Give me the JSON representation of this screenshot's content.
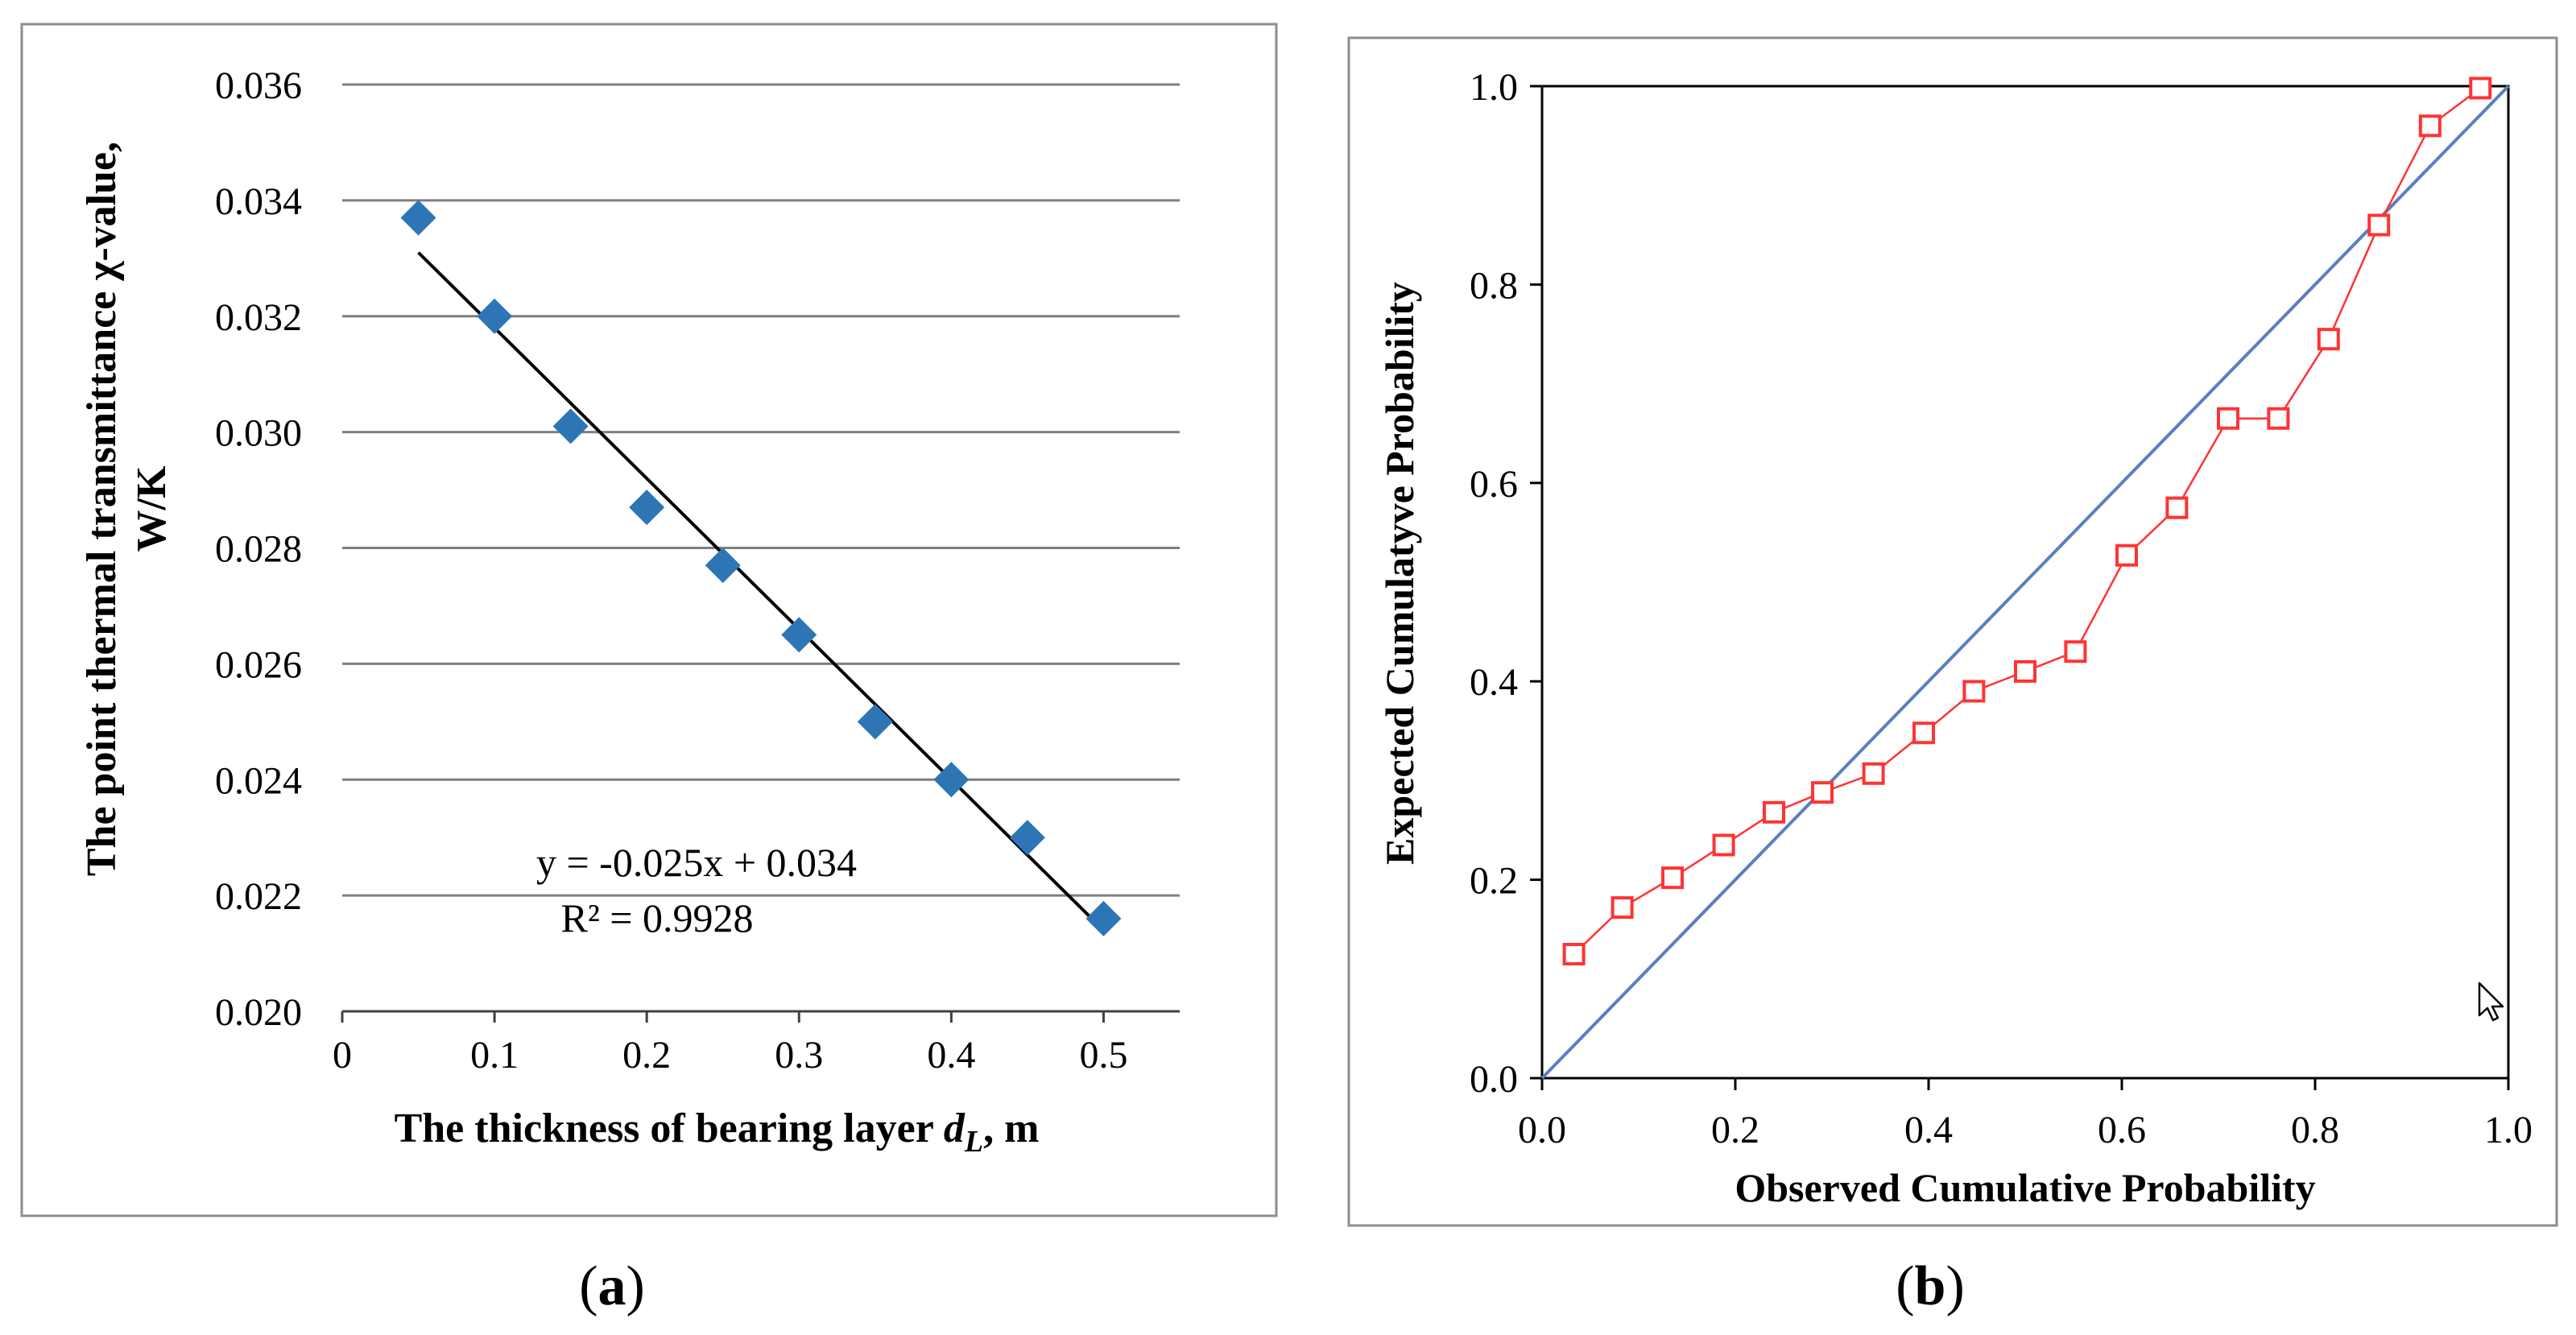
{
  "colors": {
    "scatter_marker": "#2e75b6",
    "trendline": "#000000",
    "pp_series": "#ff3333",
    "pp_reference": "#5b7fc0",
    "gridline": "#7f7f7f",
    "frame": "#8c8c8c"
  },
  "panels": {
    "a": {
      "caption": "(a)",
      "caption_letter": "a"
    },
    "b": {
      "caption": "(b)",
      "caption_letter": "b"
    }
  },
  "cursor": {
    "icon": "mouse-pointer-icon"
  },
  "chart_data": [
    {
      "id": "a",
      "type": "scatter",
      "title": "",
      "xlabel": "The thickness of bearing layer dL, m",
      "xlabel_parts": {
        "prefix": "The thickness of bearing layer ",
        "var": "d",
        "sub": "L",
        "suffix": ", m"
      },
      "ylabel": "The point thermal transmittance χ-value, W/K",
      "ylabel_lines": [
        "The point thermal transmittance χ-value,",
        "W/K"
      ],
      "xlim": [
        0,
        0.55
      ],
      "ylim": [
        0.02,
        0.036
      ],
      "xticks": [
        0,
        0.1,
        0.2,
        0.3,
        0.4,
        0.5
      ],
      "xtick_labels": [
        "0",
        "0.1",
        "0.2",
        "0.3",
        "0.4",
        "0.5"
      ],
      "yticks": [
        0.02,
        0.022,
        0.024,
        0.026,
        0.028,
        0.03,
        0.032,
        0.034,
        0.036
      ],
      "ytick_labels": [
        "0.020",
        "0.022",
        "0.024",
        "0.026",
        "0.028",
        "0.030",
        "0.032",
        "0.034",
        "0.036"
      ],
      "grid": "horizontal",
      "series": [
        {
          "name": "χ-value",
          "marker": "diamond",
          "x": [
            0.05,
            0.1,
            0.15,
            0.2,
            0.25,
            0.3,
            0.35,
            0.4,
            0.45,
            0.5
          ],
          "y": [
            0.0337,
            0.032,
            0.0301,
            0.0287,
            0.0277,
            0.0265,
            0.025,
            0.024,
            0.023,
            0.0216
          ]
        }
      ],
      "trendline": {
        "slope": -0.025,
        "intercept": 0.034,
        "x_range": [
          0.05,
          0.5
        ],
        "y_start": 0.0331,
        "y_end": 0.0214,
        "equation": "y = -0.025x + 0.034",
        "r2": "R² = 0.9928"
      }
    },
    {
      "id": "b",
      "type": "line",
      "title": "",
      "xlabel": "Observed Cumulative Probability",
      "ylabel": "Expected Cumulatyve Probability",
      "xlim": [
        0,
        1
      ],
      "ylim": [
        0,
        1
      ],
      "xticks": [
        0,
        0.2,
        0.4,
        0.6,
        0.8,
        1.0
      ],
      "xtick_labels": [
        "0.0",
        "0.2",
        "0.4",
        "0.6",
        "0.8",
        "1.0"
      ],
      "yticks": [
        0,
        0.2,
        0.4,
        0.6,
        0.8,
        1.0
      ],
      "ytick_labels": [
        "0.0",
        "0.2",
        "0.4",
        "0.6",
        "0.8",
        "1.0"
      ],
      "grid": "none",
      "series": [
        {
          "name": "P-P points",
          "marker": "square",
          "x": [
            0.033,
            0.083,
            0.135,
            0.188,
            0.24,
            0.29,
            0.343,
            0.395,
            0.447,
            0.5,
            0.552,
            0.605,
            0.657,
            0.71,
            0.762,
            0.814,
            0.866,
            0.919,
            0.971
          ],
          "y": [
            0.125,
            0.172,
            0.202,
            0.235,
            0.268,
            0.288,
            0.307,
            0.348,
            0.39,
            0.41,
            0.43,
            0.527,
            0.575,
            0.665,
            0.665,
            0.745,
            0.86,
            0.96,
            0.998
          ]
        },
        {
          "name": "Reference line",
          "x": [
            0,
            1
          ],
          "y": [
            0,
            1
          ]
        }
      ]
    }
  ]
}
